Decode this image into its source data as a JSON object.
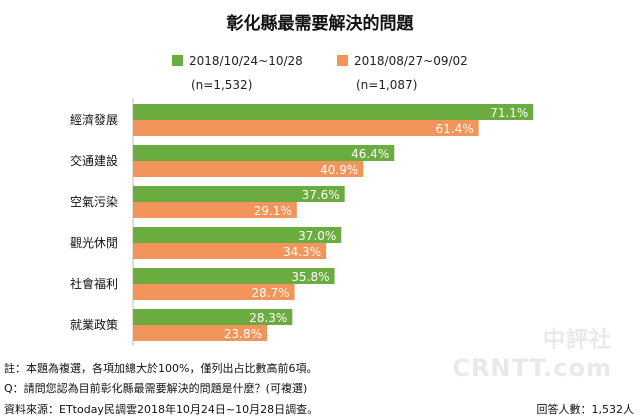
{
  "chart_data": {
    "type": "bar",
    "orientation": "horizontal",
    "title": "彰化縣最需要解決的問題",
    "categories": [
      "經濟發展",
      "交通建設",
      "空氣污染",
      "觀光休閒",
      "社會福利",
      "就業政策"
    ],
    "series": [
      {
        "name": "2018/10/24~10/28",
        "sample": "(n=1,532)",
        "color": "#6aac3f",
        "values": [
          71.1,
          46.4,
          37.6,
          37.0,
          35.8,
          28.3
        ],
        "labels": [
          "71.1%",
          "46.4%",
          "37.6%",
          "37.0%",
          "35.8%",
          "28.3%"
        ]
      },
      {
        "name": "2018/08/27~09/02",
        "sample": "(n=1,087)",
        "color": "#f3955b",
        "values": [
          61.4,
          40.9,
          29.1,
          34.3,
          28.7,
          23.8
        ],
        "labels": [
          "61.4%",
          "40.9%",
          "29.1%",
          "34.3%",
          "28.7%",
          "23.8%"
        ]
      }
    ],
    "xlim": [
      0,
      80
    ],
    "grid": false,
    "legend_position": "top"
  },
  "footnotes": {
    "note": "註：本題為複選，各項加總大於100%，僅列出占比數高前6項。",
    "question": "Q：請問您認為目前彰化縣最需要解決的問題是什麼？(可複選)",
    "source": "資料來源：ETtoday民調雲2018年10月24日~10月28日調查。",
    "respondents": "回答人數：1,532人"
  },
  "watermark": {
    "line1": "中評社",
    "line2": "CRNTT.com"
  }
}
